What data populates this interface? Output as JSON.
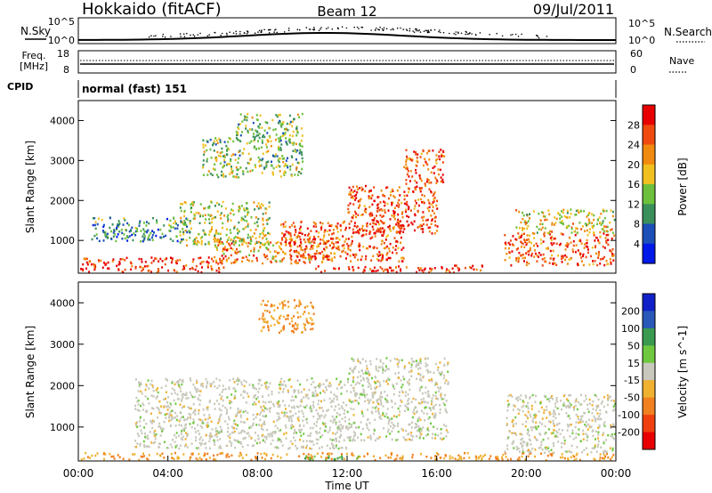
{
  "header": {
    "station": "Hokkaido (fitACF)",
    "beam": "Beam 12",
    "date": "09/Jul/2011"
  },
  "top_panels": {
    "nsky": {
      "left_label": "N.Sky",
      "left_ticks": [
        "10^5",
        "10^0"
      ],
      "right_ticks": [
        "10^5",
        "10^0"
      ],
      "right_label": "N.Search",
      "right_style": "dotted"
    },
    "freq": {
      "left_label_line1": "Freq.",
      "left_label_line2": "[MHz]",
      "left_ticks": [
        "18",
        "8"
      ],
      "right_ticks": [
        "60",
        "0"
      ],
      "right_label": "Nave",
      "right_style": "dotted"
    },
    "cpid": {
      "label": "CPID",
      "text": "normal (fast) 151"
    }
  },
  "colors": {
    "power_scale": [
      "#0018e8",
      "#1c4fb8",
      "#3a8f5a",
      "#6cc03c",
      "#f0c020",
      "#f08a10",
      "#f04a10",
      "#e80000"
    ],
    "velocity_scale": [
      "#1020c8",
      "#2858b8",
      "#3a9a50",
      "#70c840",
      "#c8c8bc",
      "#f0b030",
      "#f08020",
      "#f04010",
      "#e80000"
    ]
  },
  "chart_data": [
    {
      "type": "heatmap",
      "name": "power",
      "ylabel": "Slant Range [km]",
      "xlabel": "",
      "xlim": [
        0,
        24
      ],
      "ylim": [
        180,
        4500
      ],
      "yticks": [
        1000,
        2000,
        3000,
        4000
      ],
      "xticks": [
        "00:00",
        "04:00",
        "08:00",
        "12:00",
        "16:00",
        "20:00",
        "00:00"
      ],
      "colorbar": {
        "label": "Power [dB]",
        "ticks": [
          "4",
          "8",
          "12",
          "16",
          "20",
          "24",
          "28"
        ]
      },
      "regions": [
        {
          "t0": 0.0,
          "t1": 6.5,
          "r0": 180,
          "r1": 600,
          "level": 28
        },
        {
          "t0": 6.0,
          "t1": 11.5,
          "r0": 450,
          "r1": 1100,
          "level": 22
        },
        {
          "t0": 9.0,
          "t1": 14.5,
          "r0": 500,
          "r1": 1500,
          "level": 26
        },
        {
          "t0": 12.0,
          "t1": 16.0,
          "r0": 1200,
          "r1": 2400,
          "level": 26
        },
        {
          "t0": 14.5,
          "t1": 16.3,
          "r0": 2400,
          "r1": 3300,
          "level": 26
        },
        {
          "t0": 19.0,
          "t1": 24.0,
          "r0": 400,
          "r1": 1200,
          "level": 26
        },
        {
          "t0": 19.5,
          "t1": 24.0,
          "r0": 1200,
          "r1": 1800,
          "level": 18
        },
        {
          "t0": 4.5,
          "t1": 8.5,
          "r0": 900,
          "r1": 2000,
          "level": 16
        },
        {
          "t0": 5.5,
          "t1": 10.0,
          "r0": 2600,
          "r1": 3600,
          "level": 14
        },
        {
          "t0": 7.0,
          "t1": 10.0,
          "r0": 3600,
          "r1": 4200,
          "level": 14
        },
        {
          "t0": 0.5,
          "t1": 5.0,
          "r0": 1000,
          "r1": 1600,
          "level": 10
        },
        {
          "t0": 10.5,
          "t1": 18.0,
          "r0": 180,
          "r1": 400,
          "level": 28
        }
      ]
    },
    {
      "type": "heatmap",
      "name": "velocity",
      "ylabel": "Slant Range [km]",
      "xlabel": "Time UT",
      "xlim": [
        0,
        24
      ],
      "ylim": [
        180,
        4500
      ],
      "yticks": [
        1000,
        2000,
        3000,
        4000
      ],
      "xticks": [
        "00:00",
        "04:00",
        "08:00",
        "12:00",
        "16:00",
        "20:00",
        "00:00"
      ],
      "colorbar": {
        "label": "Velocity [m s^-1]",
        "ticks": [
          "200",
          "100",
          "50",
          "15",
          "-15",
          "-50",
          "-100",
          "-200"
        ]
      },
      "regions": [
        {
          "t0": 0.0,
          "t1": 24.0,
          "r0": 180,
          "r1": 400,
          "level": -50
        },
        {
          "t0": 2.5,
          "t1": 12.0,
          "r0": 500,
          "r1": 2200,
          "level": 0
        },
        {
          "t0": 12.0,
          "t1": 16.5,
          "r0": 700,
          "r1": 2700,
          "level": 0
        },
        {
          "t0": 19.0,
          "t1": 24.0,
          "r0": 400,
          "r1": 1800,
          "level": 0
        },
        {
          "t0": 8.0,
          "t1": 10.5,
          "r0": 3300,
          "r1": 4100,
          "level": -50
        },
        {
          "t0": 10.0,
          "t1": 12.5,
          "r0": 180,
          "r1": 350,
          "level": 50
        }
      ]
    }
  ]
}
